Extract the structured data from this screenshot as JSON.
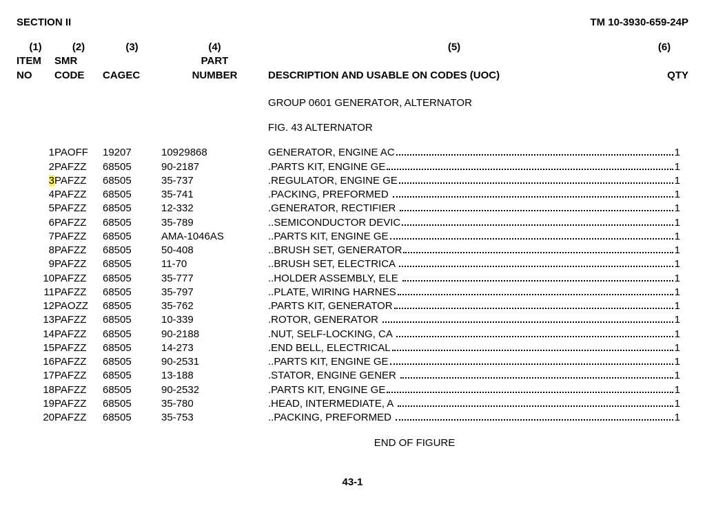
{
  "header": {
    "section": "SECTION II",
    "tm": "TM 10-3930-659-24P"
  },
  "columns": {
    "c1_num": "(1)",
    "c1_label1": "ITEM",
    "c1_label2": "NO",
    "c2_num": "(2)",
    "c2_label1": "SMR",
    "c2_label2": "CODE",
    "c3_num": "(3)",
    "c3_label2": "CAGEC",
    "c4_num": "(4)",
    "c4_label1": "PART",
    "c4_label2": "NUMBER",
    "c5_num": "(5)",
    "c5_label2": "DESCRIPTION AND USABLE ON CODES (UOC)",
    "c6_num": "(6)",
    "c6_label2": "QTY"
  },
  "group_line": "GROUP 0601  GENERATOR, ALTERNATOR",
  "fig_line": "FIG. 43  ALTERNATOR",
  "rows": [
    {
      "item": "1",
      "smr": "PAOFF",
      "cagec": "19207",
      "part": "10929868",
      "desc": "GENERATOR, ENGINE AC",
      "qty": "1",
      "hl": false
    },
    {
      "item": "2",
      "smr": "PAFZZ",
      "cagec": "68505",
      "part": "90-2187",
      "desc": ".PARTS KIT, ENGINE GE",
      "qty": "1",
      "hl": false
    },
    {
      "item": "3",
      "smr": "PAFZZ",
      "cagec": "68505",
      "part": "35-737",
      "desc": ".REGULATOR, ENGINE GE",
      "qty": "1",
      "hl": true
    },
    {
      "item": "4",
      "smr": "PAFZZ",
      "cagec": "68505",
      "part": "35-741",
      "desc": ".PACKING, PREFORMED ",
      "qty": "1",
      "hl": false
    },
    {
      "item": "5",
      "smr": "PAFZZ",
      "cagec": "68505",
      "part": "12-332",
      "desc": ".GENERATOR, RECTIFIER ",
      "qty": "1",
      "hl": false
    },
    {
      "item": "6",
      "smr": "PAFZZ",
      "cagec": "68505",
      "part": "35-789",
      "desc": "..SEMICONDUCTOR DEVIC",
      "qty": "1",
      "hl": false
    },
    {
      "item": "7",
      "smr": "PAFZZ",
      "cagec": "68505",
      "part": "AMA-1046AS",
      "desc": "..PARTS KIT, ENGINE GE",
      "qty": "1",
      "hl": false
    },
    {
      "item": "8",
      "smr": "PAFZZ",
      "cagec": "68505",
      "part": "50-408",
      "desc": "..BRUSH SET, GENERATOR",
      "qty": "1",
      "hl": false
    },
    {
      "item": "9",
      "smr": "PAFZZ",
      "cagec": "68505",
      "part": "11-70",
      "desc": "..BRUSH SET, ELECTRICA ",
      "qty": "1",
      "hl": false
    },
    {
      "item": "10",
      "smr": "PAFZZ",
      "cagec": "68505",
      "part": "35-777",
      "desc": "..HOLDER ASSEMBLY, ELE ",
      "qty": "1",
      "hl": false
    },
    {
      "item": "11",
      "smr": "PAFZZ",
      "cagec": "68505",
      "part": "35-797",
      "desc": "..PLATE, WIRING HARNES",
      "qty": "1",
      "hl": false
    },
    {
      "item": "12",
      "smr": "PAOZZ",
      "cagec": "68505",
      "part": "35-762",
      "desc": ".PARTS KIT, GENERATOR",
      "qty": "1",
      "hl": false
    },
    {
      "item": "13",
      "smr": "PAFZZ",
      "cagec": "68505",
      "part": "10-339",
      "desc": ".ROTOR, GENERATOR ",
      "qty": "1",
      "hl": false
    },
    {
      "item": "14",
      "smr": "PAFZZ",
      "cagec": "68505",
      "part": "90-2188",
      "desc": ".NUT, SELF-LOCKING, CA ",
      "qty": "1",
      "hl": false
    },
    {
      "item": "15",
      "smr": "PAFZZ",
      "cagec": "68505",
      "part": "14-273",
      "desc": ".END BELL, ELECTRICAL",
      "qty": "1",
      "hl": false
    },
    {
      "item": "16",
      "smr": "PAFZZ",
      "cagec": "68505",
      "part": "90-2531",
      "desc": "..PARTS KIT, ENGINE GE",
      "qty": "1",
      "hl": false
    },
    {
      "item": "17",
      "smr": "PAFZZ",
      "cagec": "68505",
      "part": "13-188",
      "desc": ".STATOR, ENGINE GENER ",
      "qty": "1",
      "hl": false
    },
    {
      "item": "18",
      "smr": "PAFZZ",
      "cagec": "68505",
      "part": "90-2532",
      "desc": ".PARTS KIT, ENGINE GE",
      "qty": "1",
      "hl": false
    },
    {
      "item": "19",
      "smr": "PAFZZ",
      "cagec": "68505",
      "part": "35-780",
      "desc": ".HEAD, INTERMEDIATE, A ",
      "qty": "1",
      "hl": false
    },
    {
      "item": "20",
      "smr": "PAFZZ",
      "cagec": "68505",
      "part": "35-753",
      "desc": "..PACKING, PREFORMED ",
      "qty": "1",
      "hl": false
    }
  ],
  "end_of_figure": "END OF FIGURE",
  "page_number": "43-1",
  "style": {
    "highlight_color": "#fff24a",
    "font_family": "Arial",
    "text_color": "#000000",
    "background": "#ffffff"
  }
}
